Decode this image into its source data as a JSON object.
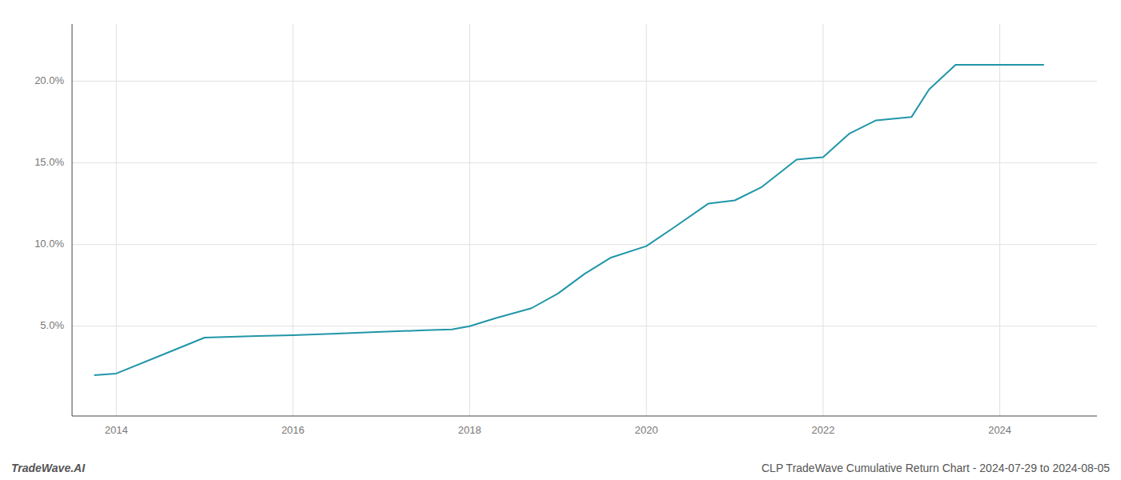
{
  "chart_data": {
    "type": "line",
    "x": [
      2013.75,
      2014.0,
      2014.5,
      2015.0,
      2015.3,
      2015.6,
      2016.0,
      2016.5,
      2017.0,
      2017.5,
      2017.8,
      2018.0,
      2018.3,
      2018.7,
      2019.0,
      2019.3,
      2019.6,
      2020.0,
      2020.3,
      2020.7,
      2021.0,
      2021.3,
      2021.7,
      2022.0,
      2022.3,
      2022.6,
      2023.0,
      2023.2,
      2023.5,
      2023.8,
      2024.0,
      2024.5
    ],
    "values": [
      2.0,
      2.1,
      3.2,
      4.3,
      4.35,
      4.4,
      4.45,
      4.55,
      4.65,
      4.75,
      4.8,
      5.0,
      5.5,
      6.1,
      7.0,
      8.2,
      9.2,
      9.9,
      11.0,
      12.5,
      12.7,
      13.5,
      15.2,
      15.35,
      16.8,
      17.6,
      17.8,
      19.5,
      21.0,
      21.0,
      21.0,
      21.0
    ],
    "color": "#2196a8",
    "xlim": [
      2013.5,
      2025.1
    ],
    "ylim": [
      -0.5,
      23.5
    ],
    "xticks": [
      2014,
      2016,
      2018,
      2020,
      2022,
      2024
    ],
    "yticks": [
      {
        "value": 5.0,
        "label": "5.0%"
      },
      {
        "value": 10.0,
        "label": "10.0%"
      },
      {
        "value": 15.0,
        "label": "15.0%"
      },
      {
        "value": 20.0,
        "label": "20.0%"
      }
    ],
    "grid": true,
    "annotations": [
      "TradeWave.AI",
      "CLP TradeWave Cumulative Return Chart - 2024-07-29 to 2024-08-05"
    ]
  }
}
